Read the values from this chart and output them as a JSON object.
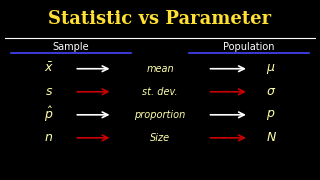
{
  "title": "Statistic vs Parameter",
  "title_color": "#FFE033",
  "bg_color": "#000000",
  "col_left_label": "Sample",
  "col_right_label": "Population",
  "col_label_color": "#FFFFFF",
  "blue_line_color": "#4444FF",
  "white_arrow_color": "#FFFFFF",
  "red_arrow_color": "#CC0000",
  "rows": [
    {
      "left": "$\\bar{x}$",
      "mid": "mean",
      "right": "$\\mu$",
      "arrow_color": "#FFFFFF"
    },
    {
      "left": "$s$",
      "mid": "st. dev.",
      "right": "$\\sigma$",
      "arrow_color": "#CC0000"
    },
    {
      "left": "$\\hat{p}$",
      "mid": "proportion",
      "right": "$p$",
      "arrow_color": "#FFFFFF"
    },
    {
      "left": "$n$",
      "mid": "Size",
      "right": "$N$",
      "arrow_color": "#CC0000"
    }
  ],
  "handwriting_color": "#FFFFAA"
}
